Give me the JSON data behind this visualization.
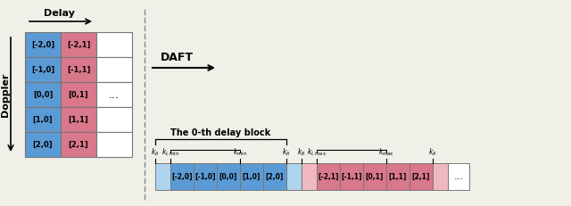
{
  "bg_color": "#f0efe8",
  "blue_color": "#5b9bd5",
  "pink_color": "#d9788a",
  "light_blue": "#aed4ee",
  "light_pink": "#f0b8c0",
  "white_color": "#ffffff",
  "row_labels_col0": [
    "[-2,0]",
    "[-1,0]",
    "[0,0]",
    "[1,0]",
    "[2,0]"
  ],
  "row_labels_col1": [
    "[-2,1]",
    "[-1,1]",
    "[0,1]",
    "[1,1]",
    "[2,1]"
  ],
  "seq_labels_col0": [
    "[-2,0]",
    "[-1,0]",
    "[0,0]",
    "[1,0]",
    "[2,0]"
  ],
  "seq_labels_col1": [
    "[-2,1]",
    "[-1,1]",
    "[0,1]",
    "[1,1]",
    "[2,1]"
  ],
  "delay_text": "Delay",
  "doppler_text": "Doppler",
  "daft_text": "DAFT",
  "block_text": "The 0-th delay block"
}
